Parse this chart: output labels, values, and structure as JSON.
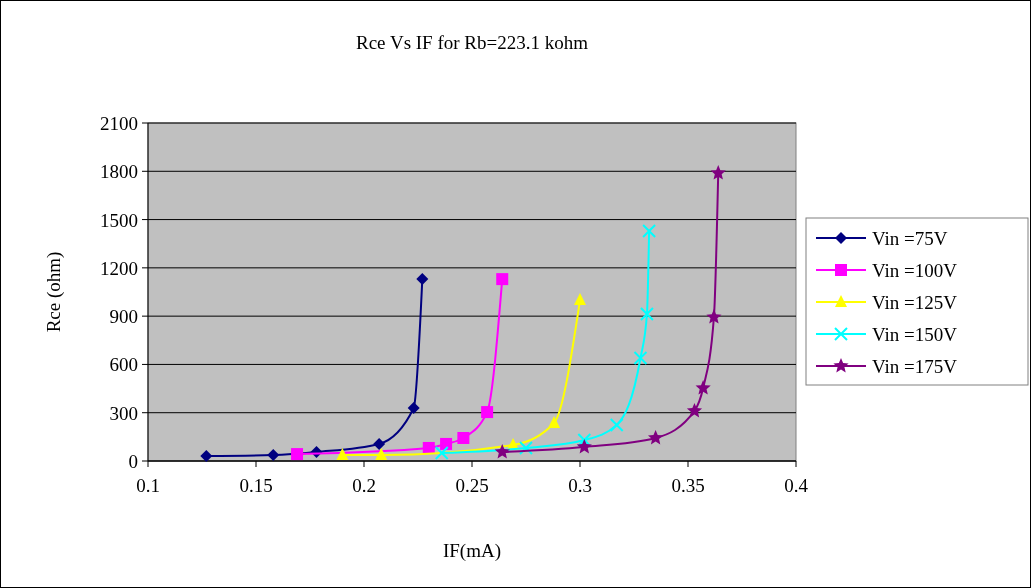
{
  "chart_data": {
    "type": "line",
    "title": "Rce Vs IF for Rb=223.1 kohm",
    "xlabel": "IF(mA)",
    "ylabel": "Rce (ohm)",
    "xlim": [
      0.1,
      0.4
    ],
    "xticks": [
      0.1,
      0.15,
      0.2,
      0.25,
      0.3,
      0.35,
      0.4
    ],
    "ylim": [
      0,
      2100
    ],
    "yticks": [
      0,
      300,
      600,
      900,
      1200,
      1500,
      1800,
      2100
    ],
    "grid": "y",
    "legend": "right",
    "line_style": "solid",
    "series": [
      {
        "name": "Vin =75V",
        "color": "#000080",
        "marker": "diamond",
        "x": [
          0.127,
          0.158,
          0.178,
          0.207,
          0.223,
          0.227
        ],
        "values": [
          31,
          37,
          56,
          106,
          329,
          1130
        ]
      },
      {
        "name": "Vin =100V",
        "color": "#ff00ff",
        "marker": "square",
        "x": [
          0.169,
          0.23,
          0.238,
          0.246,
          0.257,
          0.264
        ],
        "values": [
          43,
          81,
          106,
          143,
          304,
          1130
        ]
      },
      {
        "name": "Vin =125V",
        "color": "#ffff00",
        "marker": "triangle",
        "x": [
          0.19,
          0.208,
          0.269,
          0.288,
          0.3
        ],
        "values": [
          37,
          37,
          99,
          236,
          1000
        ]
      },
      {
        "name": "Vin =150V",
        "color": "#00ffff",
        "marker": "cross",
        "x": [
          0.236,
          0.275,
          0.302,
          0.317,
          0.328,
          0.331,
          0.332
        ],
        "values": [
          50,
          81,
          130,
          224,
          640,
          913,
          1429
        ]
      },
      {
        "name": "Vin =175V",
        "color": "#800080",
        "marker": "star",
        "x": [
          0.264,
          0.302,
          0.335,
          0.353,
          0.357,
          0.362,
          0.364
        ],
        "values": [
          56,
          87,
          143,
          311,
          453,
          894,
          1789
        ]
      }
    ]
  }
}
